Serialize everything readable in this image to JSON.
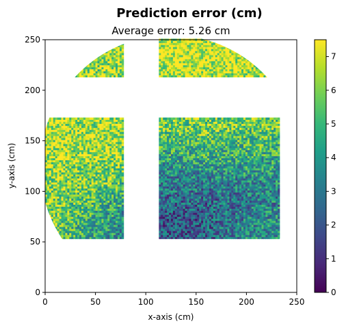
{
  "chart_data": {
    "type": "heatmap",
    "title": "Prediction error (cm)",
    "subtitle_prefix": "Average error: ",
    "average_error": 5.26,
    "average_error_unit": "cm",
    "xlabel": "x-axis (cm)",
    "ylabel": "y-axis (cm)",
    "xlim": [
      0,
      250
    ],
    "ylim": [
      0,
      250
    ],
    "xticks": [
      0,
      50,
      100,
      150,
      200,
      250
    ],
    "yticks": [
      0,
      50,
      100,
      150,
      200,
      250
    ],
    "colorbar": {
      "colormap": "viridis",
      "range": [
        0,
        7.5
      ],
      "ticks": [
        0,
        1,
        2,
        3,
        4,
        5,
        6,
        7
      ],
      "colors": [
        "#440154",
        "#482878",
        "#3e4989",
        "#31688e",
        "#26828e",
        "#1f9e89",
        "#35b779",
        "#6ece58",
        "#b5de2b",
        "#fde725"
      ]
    },
    "grid": false,
    "circle_boundary": {
      "center": [
        125,
        125
      ],
      "radius": 130
    },
    "regions": [
      {
        "name": "top-left",
        "x": [
          0,
          78
        ],
        "y": [
          213,
          250
        ]
      },
      {
        "name": "top-right",
        "x": [
          113,
          250
        ],
        "y": [
          213,
          250
        ]
      },
      {
        "name": "middle-left",
        "x": [
          0,
          78
        ],
        "y": [
          53,
          173
        ]
      },
      {
        "name": "middle-right",
        "x": [
          113,
          232
        ],
        "y": [
          53,
          173
        ]
      }
    ],
    "cell_size": 2,
    "zones": [
      {
        "cx": 10,
        "cy": 130,
        "r": 38,
        "value": 7.0
      },
      {
        "cx": 45,
        "cy": 150,
        "r": 22,
        "value": 6.5
      },
      {
        "cx": 30,
        "cy": 100,
        "r": 24,
        "value": 5.2
      },
      {
        "cx": 55,
        "cy": 70,
        "r": 20,
        "value": 3.8
      },
      {
        "cx": 60,
        "cy": 228,
        "r": 22,
        "value": 6.2
      },
      {
        "cx": 150,
        "cy": 238,
        "r": 45,
        "value": 7.2
      },
      {
        "cx": 130,
        "cy": 70,
        "r": 28,
        "value": 2.0
      },
      {
        "cx": 185,
        "cy": 95,
        "r": 25,
        "value": 2.3
      },
      {
        "cx": 205,
        "cy": 65,
        "r": 18,
        "value": 4.0
      },
      {
        "cx": 140,
        "cy": 160,
        "r": 22,
        "value": 5.4
      },
      {
        "cx": 185,
        "cy": 165,
        "r": 25,
        "value": 5.8
      },
      {
        "cx": 190,
        "cy": 130,
        "r": 22,
        "value": 4.6
      },
      {
        "cx": 130,
        "cy": 115,
        "r": 20,
        "value": 3.4
      }
    ],
    "base_value": 4.4,
    "noise_amplitude": 2.0
  }
}
